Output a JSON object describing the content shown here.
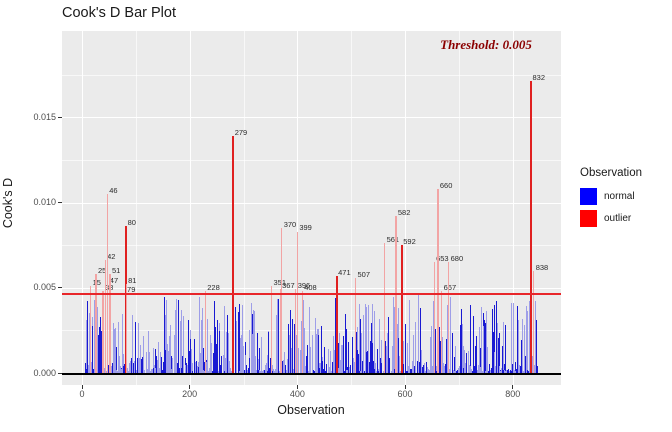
{
  "title": "Cook's D Bar Plot",
  "annotation": {
    "text": "Threshold: 0.005",
    "color": "#8B0000"
  },
  "axes": {
    "x": {
      "label": "Observation",
      "ticks": [
        0,
        200,
        400,
        600,
        800
      ]
    },
    "y": {
      "label": "Cook's D",
      "ticks": [
        "0.000",
        "0.005",
        "0.010",
        "0.015"
      ]
    }
  },
  "legend": {
    "title": "Observation",
    "items": [
      {
        "label": "normal",
        "color": "#0000FF"
      },
      {
        "label": "outlier",
        "color": "#FF0000"
      }
    ]
  },
  "colors": {
    "panel_background": "#EBEBEB",
    "grid": "#FFFFFF",
    "normal_bar_dark": "#1a1ad2",
    "normal_bar_light": "#9e9ee8",
    "outlier_bar_strong": "#e02020",
    "outlier_bar_light": "#f2a4a4",
    "threshold_line": "#e8262a",
    "zero_line": "#000000",
    "annotation_text": "#8B0000"
  },
  "chart_data": {
    "type": "bar",
    "title": "Cook's D Bar Plot",
    "xlabel": "Observation",
    "ylabel": "Cook's D",
    "xlim": [
      -37,
      890
    ],
    "ylim": [
      0,
      0.0186
    ],
    "grid": true,
    "legend_position": "right",
    "x_major_gridlines": [
      0,
      200,
      400,
      600,
      800
    ],
    "x_minor_gridlines": [
      100,
      300,
      500,
      700
    ],
    "y_major_gridlines": [
      0,
      0.005,
      0.01,
      0.015
    ],
    "y_minor_gridlines": [
      0.0025,
      0.0075,
      0.0125,
      0.0175
    ],
    "threshold": {
      "label": "Threshold: 0.005",
      "line_value": 0.0047
    },
    "outliers": [
      {
        "obs": 15,
        "value": 0.0051,
        "emph": false
      },
      {
        "obs": 25,
        "value": 0.0058,
        "emph": false
      },
      {
        "obs": 38,
        "value": 0.0048,
        "emph": false
      },
      {
        "obs": 42,
        "value": 0.0066,
        "emph": false
      },
      {
        "obs": 46,
        "value": 0.0105,
        "emph": false
      },
      {
        "obs": 47,
        "value": 0.0052,
        "emph": false
      },
      {
        "obs": 51,
        "value": 0.0058,
        "emph": false
      },
      {
        "obs": 79,
        "value": 0.0047,
        "emph": false
      },
      {
        "obs": 80,
        "value": 0.0086,
        "emph": true
      },
      {
        "obs": 81,
        "value": 0.0052,
        "emph": false
      },
      {
        "obs": 228,
        "value": 0.0048,
        "emph": false
      },
      {
        "obs": 279,
        "value": 0.0139,
        "emph": true
      },
      {
        "obs": 351,
        "value": 0.0051,
        "emph": false
      },
      {
        "obs": 367,
        "value": 0.0049,
        "emph": false
      },
      {
        "obs": 370,
        "value": 0.0085,
        "emph": false
      },
      {
        "obs": 396,
        "value": 0.0049,
        "emph": false
      },
      {
        "obs": 399,
        "value": 0.0083,
        "emph": false
      },
      {
        "obs": 408,
        "value": 0.0048,
        "emph": false
      },
      {
        "obs": 471,
        "value": 0.0057,
        "emph": true
      },
      {
        "obs": 507,
        "value": 0.0056,
        "emph": false
      },
      {
        "obs": 561,
        "value": 0.0076,
        "emph": false
      },
      {
        "obs": 582,
        "value": 0.0092,
        "emph": false
      },
      {
        "obs": 592,
        "value": 0.0075,
        "emph": true
      },
      {
        "obs": 653,
        "value": 0.0065,
        "emph": false
      },
      {
        "obs": 660,
        "value": 0.0108,
        "emph": false
      },
      {
        "obs": 667,
        "value": 0.0048,
        "emph": false
      },
      {
        "obs": 680,
        "value": 0.0065,
        "emph": false
      },
      {
        "obs": 832,
        "value": 0.0171,
        "emph": true
      },
      {
        "obs": 838,
        "value": 0.006,
        "emph": false
      }
    ],
    "normal_bars": {
      "note": "~845 unlabeled observations below/near threshold; individual values not readable in source pixels, rendered as seeded pseudo-random heights",
      "first_obs": 5,
      "last_obs": 845,
      "value_range": [
        0.00012,
        0.0046
      ],
      "seed": 20,
      "dark_fraction": 0.4
    }
  }
}
